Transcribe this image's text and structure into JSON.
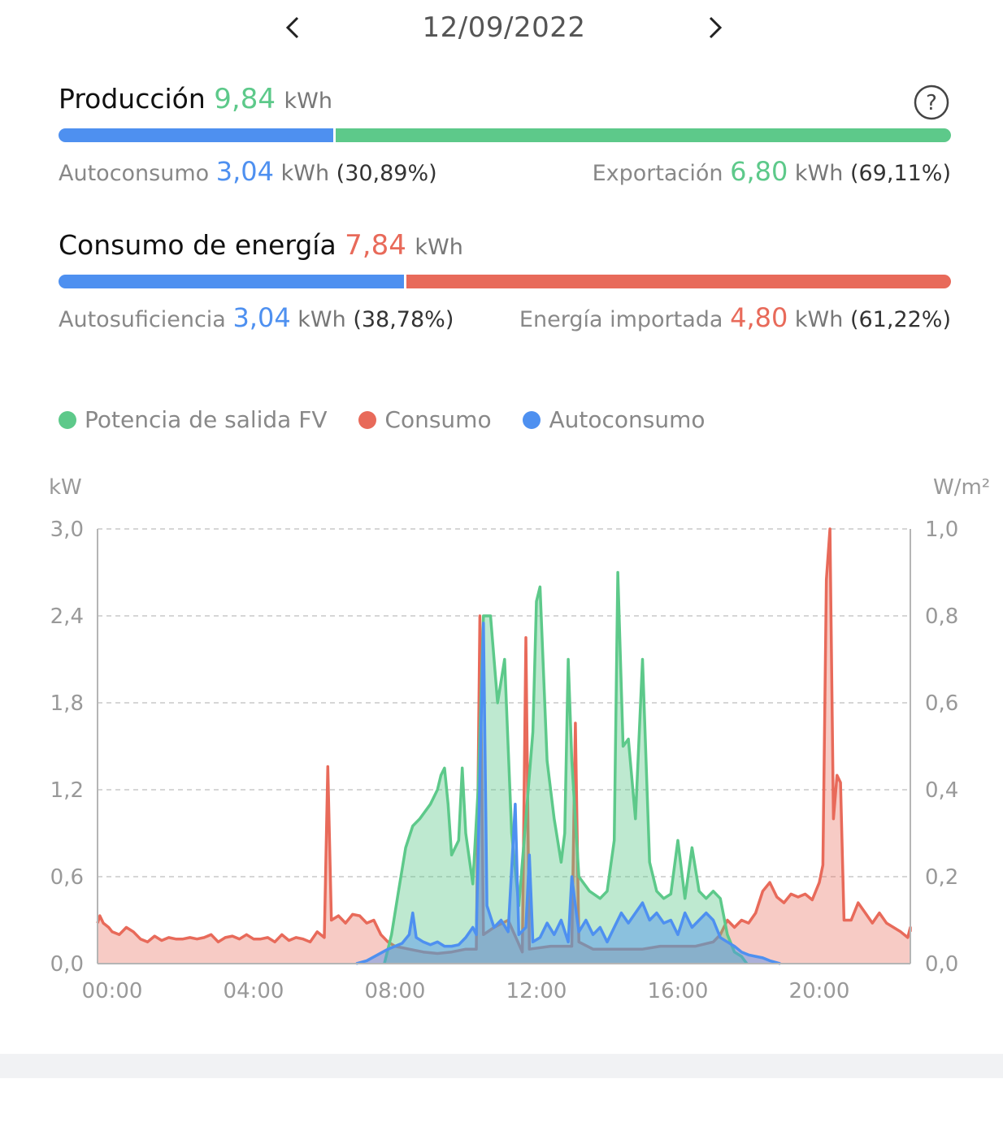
{
  "header": {
    "date": "12/09/2022",
    "prev_icon": "chevron-left-icon",
    "next_icon": "chevron-right-icon"
  },
  "production": {
    "label": "Producción",
    "value": "9,84",
    "unit": "kWh",
    "help_icon": "question-circle-icon",
    "self_consumption": {
      "label": "Autoconsumo",
      "value": "3,04",
      "unit": "kWh",
      "percent": "(30,89%)",
      "fraction": 0.3089
    },
    "export": {
      "label": "Exportación",
      "value": "6,80",
      "unit": "kWh",
      "percent": "(69,11%)",
      "fraction": 0.6911
    }
  },
  "consumption": {
    "label": "Consumo de energía",
    "value": "7,84",
    "unit": "kWh",
    "self_sufficiency": {
      "label": "Autosuficiencia",
      "value": "3,04",
      "unit": "kWh",
      "percent": "(38,78%)",
      "fraction": 0.3878
    },
    "imported": {
      "label": "Energía importada",
      "value": "4,80",
      "unit": "kWh",
      "percent": "(61,22%)",
      "fraction": 0.6122
    }
  },
  "colors": {
    "green": "#5dc98a",
    "blue": "#4e90f0",
    "red": "#e86a5a"
  },
  "chart_data": {
    "type": "area",
    "legend_placement": "top-left",
    "grid": true,
    "left_axis_unit": "kW",
    "right_axis_unit": "W/m²",
    "ylim": [
      0,
      3.0
    ],
    "y2lim": [
      0,
      1.0
    ],
    "xlim": [
      0,
      23
    ],
    "yticks": [
      "0,0",
      "0,6",
      "1,2",
      "1,8",
      "2,4",
      "3,0"
    ],
    "y2ticks": [
      "0,0",
      "0,2",
      "0,4",
      "0,6",
      "0,8",
      "1,0"
    ],
    "xticks": [
      {
        "label": "00:00",
        "x": 0
      },
      {
        "label": "04:00",
        "x": 4
      },
      {
        "label": "08:00",
        "x": 8
      },
      {
        "label": "12:00",
        "x": 12
      },
      {
        "label": "16:00",
        "x": 16
      },
      {
        "label": "20:00",
        "x": 20
      }
    ],
    "series": [
      {
        "name": "Consumo",
        "color": "#e86a5a",
        "points": [
          [
            -0.45,
            0.28
          ],
          [
            -0.35,
            0.33
          ],
          [
            -0.25,
            0.28
          ],
          [
            -0.1,
            0.25
          ],
          [
            0,
            0.22
          ],
          [
            0.2,
            0.2
          ],
          [
            0.4,
            0.25
          ],
          [
            0.6,
            0.22
          ],
          [
            0.8,
            0.17
          ],
          [
            1.0,
            0.15
          ],
          [
            1.2,
            0.19
          ],
          [
            1.4,
            0.16
          ],
          [
            1.6,
            0.18
          ],
          [
            1.8,
            0.17
          ],
          [
            2.0,
            0.17
          ],
          [
            2.2,
            0.18
          ],
          [
            2.4,
            0.17
          ],
          [
            2.6,
            0.18
          ],
          [
            2.8,
            0.2
          ],
          [
            3.0,
            0.15
          ],
          [
            3.2,
            0.18
          ],
          [
            3.4,
            0.19
          ],
          [
            3.6,
            0.17
          ],
          [
            3.8,
            0.2
          ],
          [
            4.0,
            0.17
          ],
          [
            4.2,
            0.17
          ],
          [
            4.4,
            0.18
          ],
          [
            4.6,
            0.15
          ],
          [
            4.8,
            0.2
          ],
          [
            5.0,
            0.16
          ],
          [
            5.2,
            0.18
          ],
          [
            5.4,
            0.17
          ],
          [
            5.6,
            0.15
          ],
          [
            5.8,
            0.22
          ],
          [
            6.0,
            0.18
          ],
          [
            6.1,
            1.36
          ],
          [
            6.2,
            0.3
          ],
          [
            6.4,
            0.33
          ],
          [
            6.6,
            0.28
          ],
          [
            6.8,
            0.34
          ],
          [
            7.0,
            0.33
          ],
          [
            7.2,
            0.28
          ],
          [
            7.4,
            0.3
          ],
          [
            7.6,
            0.2
          ],
          [
            7.8,
            0.15
          ],
          [
            8.0,
            0.12
          ],
          [
            8.4,
            0.1
          ],
          [
            8.8,
            0.08
          ],
          [
            9.2,
            0.07
          ],
          [
            9.6,
            0.08
          ],
          [
            10.0,
            0.1
          ],
          [
            10.3,
            0.1
          ],
          [
            10.4,
            2.4
          ],
          [
            10.5,
            0.2
          ],
          [
            10.8,
            0.25
          ],
          [
            11.2,
            0.3
          ],
          [
            11.6,
            0.08
          ],
          [
            11.7,
            2.25
          ],
          [
            11.8,
            0.1
          ],
          [
            12.4,
            0.12
          ],
          [
            12.8,
            0.12
          ],
          [
            13.0,
            0.12
          ],
          [
            13.1,
            1.66
          ],
          [
            13.2,
            0.15
          ],
          [
            13.6,
            0.1
          ],
          [
            14.0,
            0.1
          ],
          [
            14.5,
            0.1
          ],
          [
            15.0,
            0.1
          ],
          [
            15.5,
            0.12
          ],
          [
            16.0,
            0.12
          ],
          [
            16.5,
            0.12
          ],
          [
            17.0,
            0.15
          ],
          [
            17.2,
            0.2
          ],
          [
            17.4,
            0.3
          ],
          [
            17.6,
            0.25
          ],
          [
            17.8,
            0.3
          ],
          [
            18.0,
            0.28
          ],
          [
            18.2,
            0.35
          ],
          [
            18.4,
            0.5
          ],
          [
            18.6,
            0.56
          ],
          [
            18.8,
            0.46
          ],
          [
            19.0,
            0.42
          ],
          [
            19.2,
            0.48
          ],
          [
            19.4,
            0.46
          ],
          [
            19.6,
            0.48
          ],
          [
            19.8,
            0.44
          ],
          [
            20.0,
            0.56
          ],
          [
            20.1,
            0.68
          ],
          [
            20.2,
            2.65
          ],
          [
            20.3,
            3.0
          ],
          [
            20.4,
            1.0
          ],
          [
            20.5,
            1.3
          ],
          [
            20.6,
            1.25
          ],
          [
            20.7,
            0.3
          ],
          [
            20.9,
            0.3
          ],
          [
            21.1,
            0.42
          ],
          [
            21.3,
            0.35
          ],
          [
            21.5,
            0.28
          ],
          [
            21.7,
            0.35
          ],
          [
            21.9,
            0.28
          ],
          [
            22.1,
            0.25
          ],
          [
            22.3,
            0.22
          ],
          [
            22.5,
            0.18
          ],
          [
            22.7,
            0.25
          ],
          [
            22.9,
            0.22
          ],
          [
            23.0,
            0.22
          ]
        ]
      },
      {
        "name": "Potencia de salida FV",
        "color": "#5dc98a",
        "points": [
          [
            7.7,
            0.0
          ],
          [
            7.9,
            0.2
          ],
          [
            8.1,
            0.5
          ],
          [
            8.3,
            0.8
          ],
          [
            8.5,
            0.95
          ],
          [
            8.7,
            1.0
          ],
          [
            9.0,
            1.1
          ],
          [
            9.2,
            1.2
          ],
          [
            9.3,
            1.3
          ],
          [
            9.4,
            1.35
          ],
          [
            9.5,
            1.1
          ],
          [
            9.6,
            0.75
          ],
          [
            9.8,
            0.85
          ],
          [
            9.9,
            1.35
          ],
          [
            10.0,
            0.9
          ],
          [
            10.2,
            0.55
          ],
          [
            10.35,
            1.2
          ],
          [
            10.5,
            2.4
          ],
          [
            10.7,
            2.4
          ],
          [
            10.9,
            1.8
          ],
          [
            11.1,
            2.1
          ],
          [
            11.3,
            0.9
          ],
          [
            11.5,
            0.4
          ],
          [
            11.7,
            1.0
          ],
          [
            11.9,
            1.6
          ],
          [
            12.0,
            2.5
          ],
          [
            12.1,
            2.6
          ],
          [
            12.3,
            1.4
          ],
          [
            12.5,
            1.0
          ],
          [
            12.7,
            0.7
          ],
          [
            12.8,
            0.9
          ],
          [
            12.9,
            2.1
          ],
          [
            13.0,
            1.4
          ],
          [
            13.2,
            0.6
          ],
          [
            13.5,
            0.5
          ],
          [
            13.8,
            0.45
          ],
          [
            14.0,
            0.5
          ],
          [
            14.2,
            0.85
          ],
          [
            14.3,
            2.7
          ],
          [
            14.45,
            1.5
          ],
          [
            14.6,
            1.55
          ],
          [
            14.8,
            1.0
          ],
          [
            15.0,
            2.1
          ],
          [
            15.2,
            0.7
          ],
          [
            15.4,
            0.5
          ],
          [
            15.6,
            0.45
          ],
          [
            15.8,
            0.48
          ],
          [
            16.0,
            0.85
          ],
          [
            16.2,
            0.45
          ],
          [
            16.4,
            0.8
          ],
          [
            16.6,
            0.5
          ],
          [
            16.8,
            0.45
          ],
          [
            17.0,
            0.5
          ],
          [
            17.2,
            0.45
          ],
          [
            17.4,
            0.2
          ],
          [
            17.6,
            0.08
          ],
          [
            17.8,
            0.05
          ],
          [
            17.95,
            0.0
          ]
        ]
      },
      {
        "name": "Autoconsumo",
        "color": "#4e90f0",
        "points": [
          [
            6.9,
            0.0
          ],
          [
            7.2,
            0.02
          ],
          [
            7.5,
            0.06
          ],
          [
            7.8,
            0.1
          ],
          [
            8.0,
            0.12
          ],
          [
            8.2,
            0.14
          ],
          [
            8.4,
            0.2
          ],
          [
            8.5,
            0.35
          ],
          [
            8.6,
            0.18
          ],
          [
            8.8,
            0.15
          ],
          [
            9.0,
            0.13
          ],
          [
            9.2,
            0.15
          ],
          [
            9.4,
            0.12
          ],
          [
            9.6,
            0.12
          ],
          [
            9.8,
            0.13
          ],
          [
            10.0,
            0.18
          ],
          [
            10.2,
            0.25
          ],
          [
            10.3,
            0.2
          ],
          [
            10.4,
            1.3
          ],
          [
            10.5,
            2.35
          ],
          [
            10.6,
            0.4
          ],
          [
            10.8,
            0.25
          ],
          [
            11.0,
            0.3
          ],
          [
            11.2,
            0.22
          ],
          [
            11.4,
            1.1
          ],
          [
            11.5,
            0.2
          ],
          [
            11.7,
            0.25
          ],
          [
            11.8,
            0.75
          ],
          [
            11.9,
            0.15
          ],
          [
            12.1,
            0.18
          ],
          [
            12.3,
            0.28
          ],
          [
            12.5,
            0.2
          ],
          [
            12.7,
            0.3
          ],
          [
            12.9,
            0.15
          ],
          [
            13.0,
            0.6
          ],
          [
            13.1,
            0.4
          ],
          [
            13.2,
            0.22
          ],
          [
            13.4,
            0.3
          ],
          [
            13.6,
            0.2
          ],
          [
            13.8,
            0.25
          ],
          [
            14.0,
            0.15
          ],
          [
            14.2,
            0.25
          ],
          [
            14.4,
            0.35
          ],
          [
            14.6,
            0.28
          ],
          [
            14.8,
            0.35
          ],
          [
            15.0,
            0.42
          ],
          [
            15.2,
            0.3
          ],
          [
            15.4,
            0.35
          ],
          [
            15.6,
            0.28
          ],
          [
            15.8,
            0.3
          ],
          [
            16.0,
            0.2
          ],
          [
            16.2,
            0.35
          ],
          [
            16.4,
            0.25
          ],
          [
            16.6,
            0.3
          ],
          [
            16.8,
            0.35
          ],
          [
            17.0,
            0.3
          ],
          [
            17.2,
            0.18
          ],
          [
            17.4,
            0.15
          ],
          [
            17.6,
            0.12
          ],
          [
            17.8,
            0.08
          ],
          [
            18.0,
            0.06
          ],
          [
            18.2,
            0.05
          ],
          [
            18.4,
            0.04
          ],
          [
            18.6,
            0.02
          ],
          [
            18.9,
            0.0
          ]
        ]
      }
    ]
  }
}
